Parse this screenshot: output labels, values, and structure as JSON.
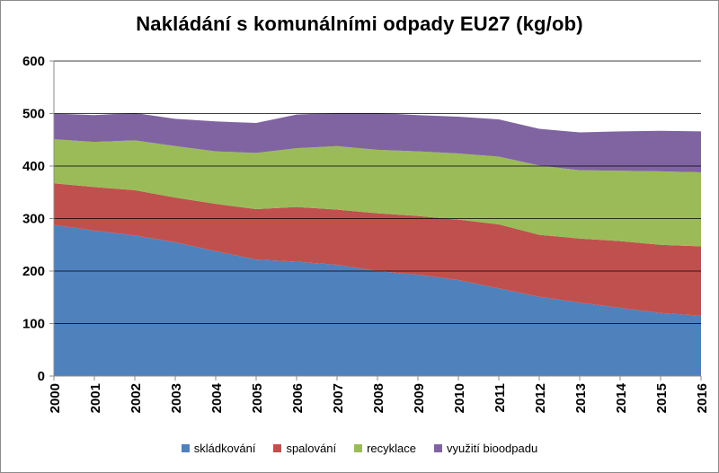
{
  "chart_data": {
    "type": "area",
    "stacked": true,
    "title": "Nakládání  s komunálními  odpady EU27 (kg/ob)",
    "xlabel": "",
    "ylabel": "",
    "ylim": [
      0,
      600
    ],
    "yticks": [
      "0",
      "100",
      "200",
      "300",
      "400",
      "500",
      "600"
    ],
    "grid": true,
    "legend_position": "bottom",
    "categories": [
      "2000",
      "2001",
      "2002",
      "2003",
      "2004",
      "2005",
      "2006",
      "2007",
      "2008",
      "2009",
      "2010",
      "2011",
      "2012",
      "2013",
      "2014",
      "2015",
      "2016"
    ],
    "series": [
      {
        "name": "skládkování",
        "color": "#4f81bd",
        "values": [
          288,
          277,
          268,
          255,
          238,
          222,
          218,
          212,
          200,
          193,
          183,
          167,
          151,
          140,
          130,
          120,
          115
        ]
      },
      {
        "name": "spalování",
        "color": "#c0504d",
        "values": [
          79,
          83,
          86,
          85,
          90,
          96,
          104,
          105,
          110,
          112,
          115,
          122,
          118,
          122,
          127,
          130,
          132
        ]
      },
      {
        "name": "recyklace",
        "color": "#9bbb59",
        "values": [
          84,
          86,
          95,
          98,
          100,
          107,
          112,
          121,
          121,
          123,
          126,
          129,
          132,
          130,
          134,
          140,
          141
        ]
      },
      {
        "name": "využití bioodpadu",
        "color": "#8064a2",
        "values": [
          49,
          51,
          52,
          52,
          57,
          57,
          64,
          63,
          70,
          69,
          70,
          71,
          70,
          72,
          75,
          77,
          78
        ]
      }
    ]
  }
}
